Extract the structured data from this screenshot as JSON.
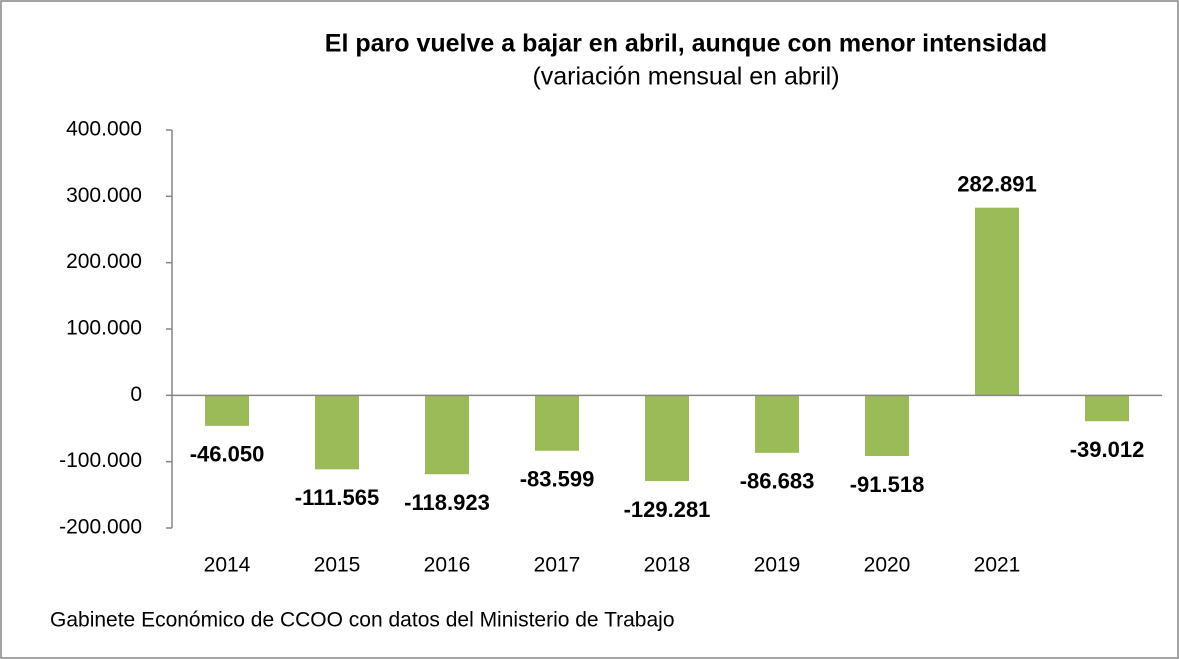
{
  "chart_data": {
    "type": "bar",
    "title": "El paro vuelve a bajar en abril, aunque con menor intensidad",
    "subtitle": "(variación mensual en abril)",
    "source": "Gabinete Económico de CCOO con datos del Ministerio de Trabajo",
    "categories": [
      "2014",
      "2015",
      "2016",
      "2017",
      "2018",
      "2019",
      "2020",
      "2021",
      null
    ],
    "values": [
      -46050,
      -111565,
      -118923,
      -83599,
      -129281,
      -86683,
      -91518,
      282891,
      -39012
    ],
    "value_labels": [
      "-46.050",
      "-111.565",
      "-118.923",
      "-83.599",
      "-129.281",
      "-86.683",
      "-91.518",
      "282.891",
      "-39.012"
    ],
    "color": "#9bbb59",
    "ylim": [
      -200000,
      400000
    ],
    "yticks": [
      {
        "value": -200000,
        "label": "-200.000"
      },
      {
        "value": -100000,
        "label": "-100.000"
      },
      0,
      {
        "value": 100000,
        "label": "100.000"
      },
      {
        "value": 200000,
        "label": "200.000"
      },
      {
        "value": 300000,
        "label": "300.000"
      },
      {
        "value": 400000,
        "label": "400.000"
      }
    ],
    "grid": false
  }
}
